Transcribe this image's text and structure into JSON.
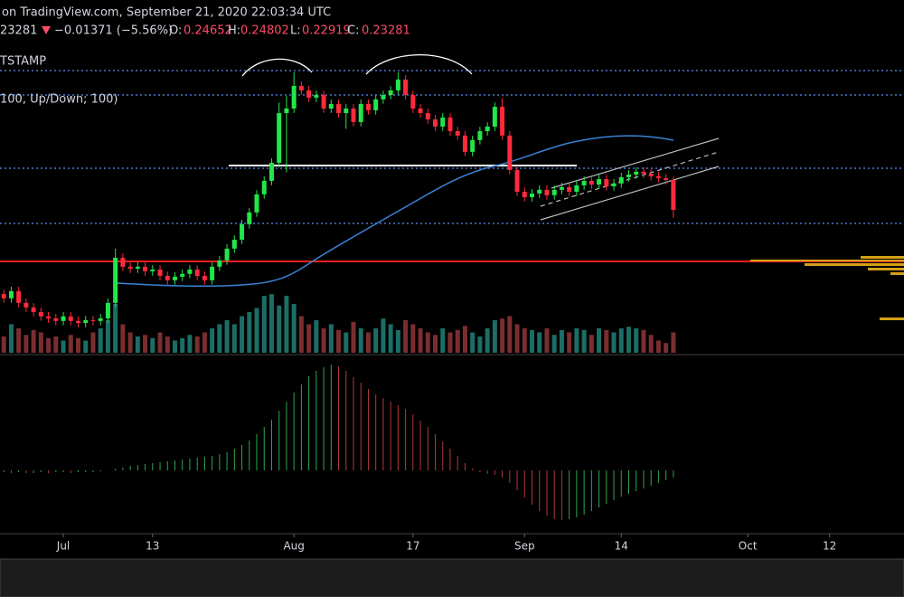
{
  "header": {
    "source": "on TradingView.com, September 21, 2020 22:03:34 UTC",
    "price": "23281",
    "change": "−0.01371 (−5.56%)",
    "o_label": "O:",
    "h_label": "H:",
    "l_label": "L:",
    "c_label": "C:",
    "exchange": "TSTAMP",
    "indicator": "100, Up/Down; 100)"
  },
  "chart_data": {
    "type": "candlestick",
    "candles": [
      [
        0.1955,
        0.1975,
        0.1922,
        0.1942
      ],
      [
        0.1942,
        0.1962,
        0.1902,
        0.1922
      ],
      [
        0.1922,
        0.1975,
        0.1902,
        0.1955
      ],
      [
        0.1955,
        0.1975,
        0.1881,
        0.1901
      ],
      [
        0.1901,
        0.1921,
        0.186,
        0.188
      ],
      [
        0.188,
        0.19,
        0.1839,
        0.1859
      ],
      [
        0.1859,
        0.1879,
        0.1819,
        0.1839
      ],
      [
        0.1839,
        0.1859,
        0.181,
        0.183
      ],
      [
        0.183,
        0.185,
        0.1798,
        0.1818
      ],
      [
        0.1818,
        0.1859,
        0.1798,
        0.1839
      ],
      [
        0.1839,
        0.1859,
        0.1798,
        0.1818
      ],
      [
        0.1818,
        0.1838,
        0.1789,
        0.1809
      ],
      [
        0.1809,
        0.1842,
        0.1789,
        0.1822
      ],
      [
        0.1822,
        0.1842,
        0.1798,
        0.1818
      ],
      [
        0.1818,
        0.185,
        0.1798,
        0.183
      ],
      [
        0.183,
        0.1921,
        0.181,
        0.1901
      ],
      [
        0.1901,
        0.215,
        0.1881,
        0.2108
      ],
      [
        0.2108,
        0.2128,
        0.2047,
        0.2067
      ],
      [
        0.2067,
        0.2087,
        0.2038,
        0.2058
      ],
      [
        0.2058,
        0.2087,
        0.2038,
        0.2067
      ],
      [
        0.2067,
        0.2087,
        0.2026,
        0.2046
      ],
      [
        0.2046,
        0.2074,
        0.2026,
        0.2054
      ],
      [
        0.2054,
        0.2074,
        0.2005,
        0.2025
      ],
      [
        0.2025,
        0.2045,
        0.1985,
        0.2005
      ],
      [
        0.2005,
        0.2041,
        0.1985,
        0.2021
      ],
      [
        0.2021,
        0.2054,
        0.2001,
        0.2034
      ],
      [
        0.2034,
        0.2074,
        0.2014,
        0.2054
      ],
      [
        0.2054,
        0.2074,
        0.2005,
        0.2025
      ],
      [
        0.2025,
        0.2045,
        0.1985,
        0.2005
      ],
      [
        0.2005,
        0.2087,
        0.1985,
        0.2067
      ],
      [
        0.2067,
        0.2116,
        0.2047,
        0.2096
      ],
      [
        0.2096,
        0.217,
        0.2076,
        0.215
      ],
      [
        0.215,
        0.2211,
        0.213,
        0.2191
      ],
      [
        0.2191,
        0.2282,
        0.2171,
        0.2262
      ],
      [
        0.2262,
        0.2336,
        0.2242,
        0.2316
      ],
      [
        0.2316,
        0.2419,
        0.2296,
        0.2399
      ],
      [
        0.2399,
        0.2481,
        0.2379,
        0.2461
      ],
      [
        0.2461,
        0.2564,
        0.2441,
        0.2544
      ],
      [
        0.2544,
        0.282,
        0.2524,
        0.2772
      ],
      [
        0.2772,
        0.285,
        0.25,
        0.2793
      ],
      [
        0.2793,
        0.296,
        0.2773,
        0.2897
      ],
      [
        0.2897,
        0.2917,
        0.2856,
        0.2876
      ],
      [
        0.2876,
        0.2896,
        0.2823,
        0.2843
      ],
      [
        0.2843,
        0.2875,
        0.2823,
        0.2855
      ],
      [
        0.2855,
        0.2875,
        0.2773,
        0.2793
      ],
      [
        0.2793,
        0.2834,
        0.2773,
        0.2814
      ],
      [
        0.2814,
        0.2834,
        0.2752,
        0.2772
      ],
      [
        0.2772,
        0.2813,
        0.27,
        0.2793
      ],
      [
        0.2793,
        0.2813,
        0.2711,
        0.2731
      ],
      [
        0.2731,
        0.2834,
        0.2711,
        0.2814
      ],
      [
        0.2814,
        0.2834,
        0.2765,
        0.2785
      ],
      [
        0.2785,
        0.2855,
        0.2765,
        0.2835
      ],
      [
        0.2835,
        0.2875,
        0.2815,
        0.2855
      ],
      [
        0.2855,
        0.2896,
        0.2835,
        0.2876
      ],
      [
        0.2876,
        0.296,
        0.2856,
        0.2926
      ],
      [
        0.2926,
        0.2946,
        0.2835,
        0.2855
      ],
      [
        0.2855,
        0.2875,
        0.2773,
        0.2793
      ],
      [
        0.2793,
        0.2813,
        0.2752,
        0.2772
      ],
      [
        0.2772,
        0.2792,
        0.2723,
        0.2743
      ],
      [
        0.2743,
        0.2763,
        0.269,
        0.271
      ],
      [
        0.271,
        0.2772,
        0.269,
        0.2752
      ],
      [
        0.2752,
        0.2772,
        0.2669,
        0.2689
      ],
      [
        0.2689,
        0.2709,
        0.2649,
        0.2669
      ],
      [
        0.2669,
        0.2689,
        0.2574,
        0.2594
      ],
      [
        0.2594,
        0.2668,
        0.2574,
        0.2648
      ],
      [
        0.2648,
        0.2709,
        0.2628,
        0.2689
      ],
      [
        0.2689,
        0.273,
        0.2669,
        0.271
      ],
      [
        0.271,
        0.2821,
        0.269,
        0.2801
      ],
      [
        0.2801,
        0.284,
        0.2649,
        0.2669
      ],
      [
        0.2669,
        0.2689,
        0.2491,
        0.2511
      ],
      [
        0.2511,
        0.2531,
        0.2391,
        0.2411
      ],
      [
        0.2411,
        0.2431,
        0.2366,
        0.2386
      ],
      [
        0.2386,
        0.2423,
        0.2366,
        0.2403
      ],
      [
        0.2403,
        0.244,
        0.2383,
        0.242
      ],
      [
        0.242,
        0.244,
        0.2375,
        0.2395
      ],
      [
        0.2395,
        0.244,
        0.2375,
        0.242
      ],
      [
        0.242,
        0.2452,
        0.24,
        0.2432
      ],
      [
        0.2432,
        0.2452,
        0.2391,
        0.2411
      ],
      [
        0.2411,
        0.246,
        0.2391,
        0.244
      ],
      [
        0.244,
        0.2481,
        0.242,
        0.2461
      ],
      [
        0.2461,
        0.2481,
        0.2424,
        0.2444
      ],
      [
        0.2444,
        0.2489,
        0.2424,
        0.2469
      ],
      [
        0.2469,
        0.2489,
        0.2416,
        0.2436
      ],
      [
        0.2436,
        0.2469,
        0.2416,
        0.2449
      ],
      [
        0.2449,
        0.2498,
        0.2429,
        0.2478
      ],
      [
        0.2478,
        0.251,
        0.2458,
        0.249
      ],
      [
        0.249,
        0.2523,
        0.247,
        0.2503
      ],
      [
        0.2503,
        0.2523,
        0.2474,
        0.2494
      ],
      [
        0.2494,
        0.2514,
        0.2462,
        0.2482
      ],
      [
        0.2482,
        0.2502,
        0.2453,
        0.2473
      ],
      [
        0.2473,
        0.2493,
        0.2445,
        0.2465
      ],
      [
        0.24652,
        0.24802,
        0.22919,
        0.23281
      ]
    ],
    "volume": [
      25,
      20,
      35,
      30,
      22,
      28,
      25,
      18,
      20,
      15,
      22,
      18,
      15,
      25,
      30,
      40,
      60,
      35,
      25,
      20,
      22,
      18,
      25,
      20,
      15,
      18,
      22,
      20,
      25,
      30,
      35,
      40,
      35,
      45,
      50,
      55,
      70,
      72,
      58,
      70,
      60,
      45,
      35,
      40,
      30,
      35,
      28,
      25,
      38,
      30,
      25,
      30,
      42,
      35,
      28,
      40,
      35,
      30,
      25,
      22,
      30,
      25,
      28,
      33,
      25,
      20,
      30,
      40,
      42,
      45,
      35,
      30,
      28,
      25,
      30,
      22,
      28,
      25,
      30,
      28,
      22,
      30,
      28,
      25,
      30,
      32,
      30,
      28,
      22,
      15,
      12,
      25
    ],
    "oscillator": [
      -3,
      -2,
      -3,
      -2,
      -3,
      -3,
      -2,
      -3,
      -2,
      -2,
      -3,
      -2,
      -2,
      -2,
      -1,
      0,
      2,
      3,
      5,
      6,
      7,
      8,
      9,
      10,
      11,
      12,
      13,
      14,
      15,
      16,
      18,
      20,
      24,
      28,
      33,
      40,
      48,
      56,
      66,
      76,
      86,
      95,
      104,
      110,
      114,
      117,
      115,
      110,
      103,
      97,
      90,
      84,
      80,
      76,
      72,
      68,
      62,
      55,
      48,
      40,
      32,
      24,
      16,
      8,
      2,
      -2,
      -4,
      -5,
      -8,
      -14,
      -22,
      -30,
      -38,
      -45,
      -50,
      -54,
      -55,
      -54,
      -52,
      -49,
      -45,
      -41,
      -37,
      -33,
      -29,
      -26,
      -23,
      -20,
      -17,
      -14,
      -11,
      -8
    ],
    "ylim": [
      0.1672,
      0.3042
    ],
    "volume_lim": [
      0,
      100
    ],
    "oscillator_lim": [
      -65,
      125
    ],
    "xlim": [
      0.49,
      122
    ],
    "xticks": [
      {
        "value": 9,
        "label": "Jul"
      },
      {
        "value": 21,
        "label": "13"
      },
      {
        "value": 40,
        "label": "Aug"
      },
      {
        "value": 56,
        "label": "17"
      },
      {
        "value": 71,
        "label": "Sep"
      },
      {
        "value": 84,
        "label": "14"
      },
      {
        "value": 101,
        "label": "Oct"
      },
      {
        "value": 112,
        "label": "12"
      }
    ],
    "colors": {
      "up": "#22e64a",
      "down": "#ff2a3c",
      "volume_up": "#1b6e66",
      "volume_down": "#7a2e30",
      "oscillator_up": "#2ea84f",
      "oscillator_down": "#b23a3a"
    }
  }
}
